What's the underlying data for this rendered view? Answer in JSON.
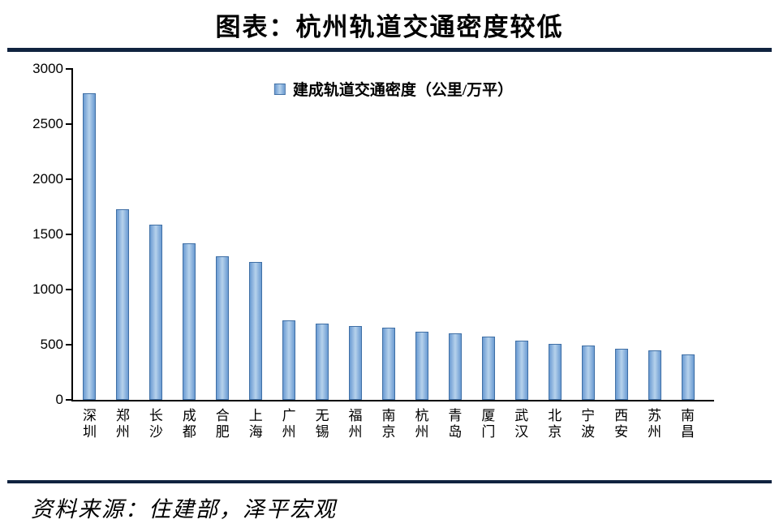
{
  "title": "图表：杭州轨道交通密度较低",
  "source": "资料来源：住建部，泽平宏观",
  "chart_data": {
    "type": "bar",
    "title": "图表：杭州轨道交通密度较低",
    "legend": "建成轨道交通密度（公里/万平）",
    "legend_position": "top-center",
    "grid": false,
    "categories": [
      "深圳",
      "郑州",
      "长沙",
      "成都",
      "合肥",
      "上海",
      "广州",
      "无锡",
      "福州",
      "南京",
      "杭州",
      "青岛",
      "厦门",
      "武汉",
      "北京",
      "宁波",
      "西安",
      "苏州",
      "南昌"
    ],
    "values": [
      2780,
      1730,
      1590,
      1420,
      1300,
      1250,
      720,
      690,
      670,
      655,
      620,
      600,
      570,
      535,
      510,
      495,
      465,
      450,
      415
    ],
    "xlabel": "",
    "ylabel": "",
    "ylim": [
      0,
      3000
    ],
    "yticks": [
      0,
      500,
      1000,
      1500,
      2000,
      2500,
      3000
    ],
    "bar_fill_color": "#9DC3E6",
    "bar_edge_color": "#3F6FA5",
    "divider_color": "#10233F"
  }
}
